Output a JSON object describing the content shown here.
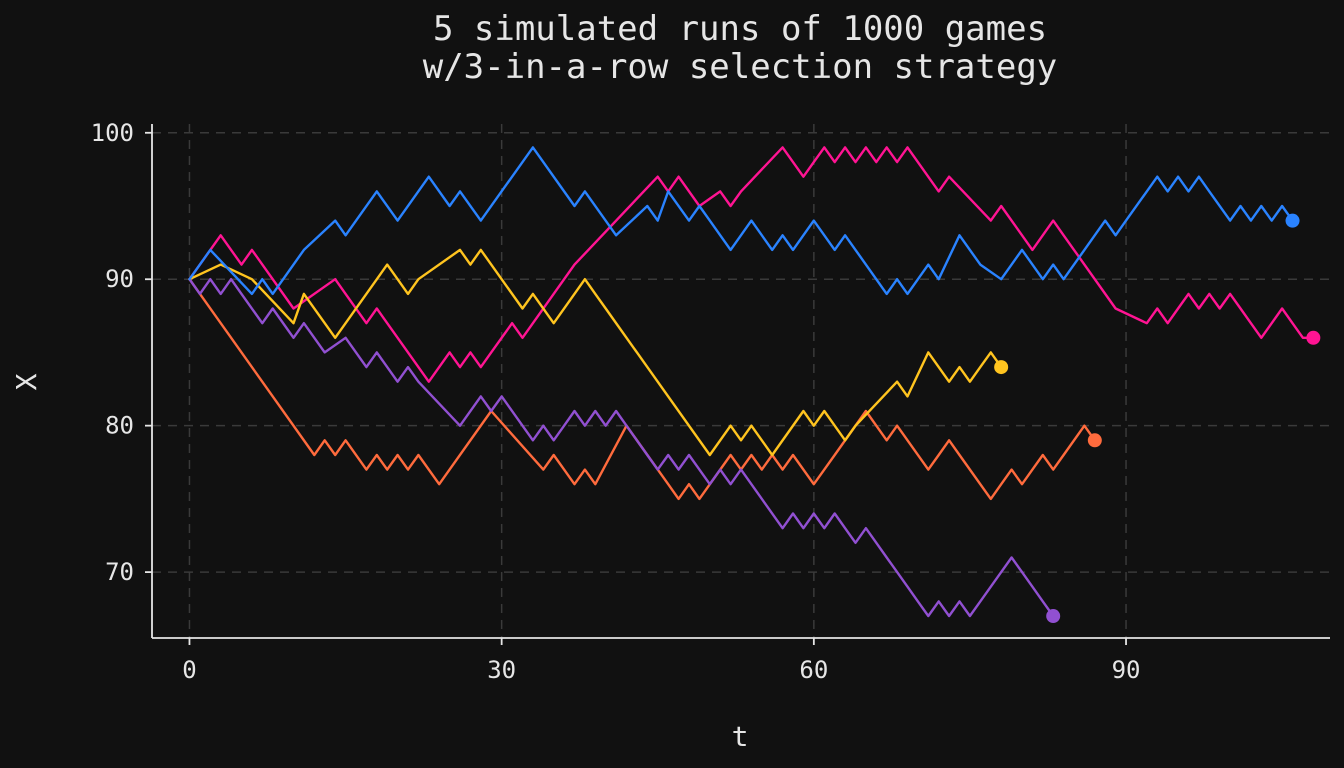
{
  "chart_data": {
    "type": "line",
    "title": [
      "5 simulated runs of 1000 games",
      "w/3-in-a-row selection strategy"
    ],
    "xlabel": "t",
    "ylabel": "X",
    "xlim": [
      -3.6,
      109.6
    ],
    "ylim": [
      65.5,
      100.6
    ],
    "xticks": [
      0,
      30,
      60,
      90
    ],
    "yticks": [
      70,
      80,
      90,
      100
    ],
    "grid": true,
    "legend": "none",
    "end_markers": true,
    "series": [
      {
        "color": "#ff1493",
        "x": [
          0,
          3,
          5,
          6,
          10,
          14,
          15,
          17,
          18,
          23,
          25,
          26,
          27,
          28,
          29,
          31,
          32,
          33,
          37,
          45,
          46,
          47,
          49,
          51,
          52,
          53,
          57,
          58,
          59,
          60,
          61,
          62,
          63,
          64,
          65,
          66,
          67,
          68,
          69,
          72,
          73,
          77,
          78,
          81,
          83,
          84,
          85,
          89,
          92,
          93,
          94,
          95,
          96,
          97,
          98,
          99,
          100,
          101,
          102,
          103,
          104,
          105,
          106,
          107,
          108
        ],
        "y": [
          90,
          93,
          91,
          92,
          88,
          90,
          89,
          87,
          88,
          83,
          85,
          84,
          85,
          84,
          85,
          87,
          86,
          87,
          91,
          97,
          96,
          97,
          95,
          96,
          95,
          96,
          99,
          98,
          97,
          98,
          99,
          98,
          99,
          98,
          99,
          98,
          99,
          98,
          99,
          96,
          97,
          94,
          95,
          92,
          94,
          93,
          92,
          88,
          87,
          88,
          87,
          88,
          89,
          88,
          89,
          88,
          89,
          88,
          87,
          86,
          87,
          88,
          87,
          86,
          86
        ]
      },
      {
        "color": "#ff6b3d",
        "x": [
          0,
          12,
          13,
          14,
          15,
          17,
          18,
          19,
          20,
          21,
          22,
          24,
          29,
          34,
          35,
          36,
          37,
          38,
          39,
          42,
          46,
          47,
          48,
          49,
          52,
          53,
          54,
          55,
          56,
          57,
          58,
          60,
          61,
          62,
          65,
          66,
          67,
          68,
          71,
          72,
          73,
          74,
          77,
          78,
          79,
          80,
          81,
          82,
          83,
          84,
          86,
          87
        ],
        "y": [
          90,
          78,
          79,
          78,
          79,
          77,
          78,
          77,
          78,
          77,
          78,
          76,
          81,
          77,
          78,
          77,
          76,
          77,
          76,
          80,
          76,
          75,
          76,
          75,
          78,
          77,
          78,
          77,
          78,
          77,
          78,
          76,
          77,
          78,
          81,
          80,
          79,
          80,
          77,
          78,
          79,
          78,
          75,
          76,
          77,
          76,
          77,
          78,
          77,
          78,
          80,
          79
        ]
      },
      {
        "color": "#ffc41f",
        "x": [
          0,
          3,
          6,
          10,
          11,
          14,
          19,
          20,
          21,
          22,
          26,
          27,
          28,
          32,
          33,
          35,
          38,
          39,
          40,
          50,
          52,
          53,
          54,
          55,
          56,
          59,
          60,
          61,
          62,
          63,
          64,
          68,
          69,
          71,
          72,
          73,
          74,
          75,
          76,
          77,
          78
        ],
        "y": [
          90,
          91,
          90,
          87,
          89,
          86,
          91,
          90,
          89,
          90,
          92,
          91,
          92,
          88,
          89,
          87,
          90,
          89,
          88,
          78,
          80,
          79,
          80,
          79,
          78,
          81,
          80,
          81,
          80,
          79,
          80,
          83,
          82,
          85,
          84,
          83,
          84,
          83,
          84,
          85,
          84
        ]
      },
      {
        "color": "#9150d1",
        "x": [
          0,
          1,
          2,
          3,
          4,
          5,
          7,
          8,
          10,
          11,
          13,
          15,
          16,
          17,
          18,
          19,
          20,
          21,
          22,
          26,
          28,
          29,
          30,
          33,
          34,
          35,
          36,
          37,
          38,
          39,
          40,
          41,
          42,
          44,
          45,
          46,
          47,
          48,
          49,
          50,
          51,
          52,
          53,
          57,
          58,
          59,
          60,
          61,
          62,
          63,
          64,
          65,
          66,
          67,
          68,
          69,
          70,
          71,
          72,
          73,
          74,
          75,
          76,
          77,
          78,
          79,
          80,
          81,
          82,
          83
        ],
        "y": [
          90,
          89,
          90,
          89,
          90,
          89,
          87,
          88,
          86,
          87,
          85,
          86,
          85,
          84,
          85,
          84,
          83,
          84,
          83,
          80,
          82,
          81,
          82,
          79,
          80,
          79,
          80,
          81,
          80,
          81,
          80,
          81,
          80,
          78,
          77,
          78,
          77,
          78,
          77,
          76,
          77,
          76,
          77,
          73,
          74,
          73,
          74,
          73,
          74,
          73,
          72,
          73,
          72,
          71,
          70,
          69,
          68,
          67,
          68,
          67,
          68,
          67,
          68,
          69,
          70,
          71,
          70,
          69,
          68,
          67
        ]
      },
      {
        "color": "#2a83ff",
        "x": [
          0,
          2,
          6,
          7,
          8,
          11,
          14,
          15,
          18,
          20,
          23,
          25,
          26,
          28,
          33,
          37,
          38,
          41,
          44,
          45,
          46,
          48,
          49,
          50,
          52,
          54,
          56,
          57,
          58,
          60,
          62,
          63,
          64,
          67,
          68,
          69,
          71,
          72,
          74,
          76,
          78,
          80,
          82,
          83,
          84,
          85,
          86,
          88,
          89,
          90,
          93,
          94,
          95,
          96,
          97,
          98,
          100,
          101,
          102,
          103,
          104,
          105,
          106
        ],
        "y": [
          90,
          92,
          89,
          90,
          89,
          92,
          94,
          93,
          96,
          94,
          97,
          95,
          96,
          94,
          99,
          95,
          96,
          93,
          95,
          94,
          96,
          94,
          95,
          94,
          92,
          94,
          92,
          93,
          92,
          94,
          92,
          93,
          92,
          89,
          90,
          89,
          91,
          90,
          93,
          91,
          90,
          92,
          90,
          91,
          90,
          91,
          92,
          94,
          93,
          94,
          97,
          96,
          97,
          96,
          97,
          96,
          94,
          95,
          94,
          95,
          94,
          95,
          94
        ]
      }
    ]
  }
}
